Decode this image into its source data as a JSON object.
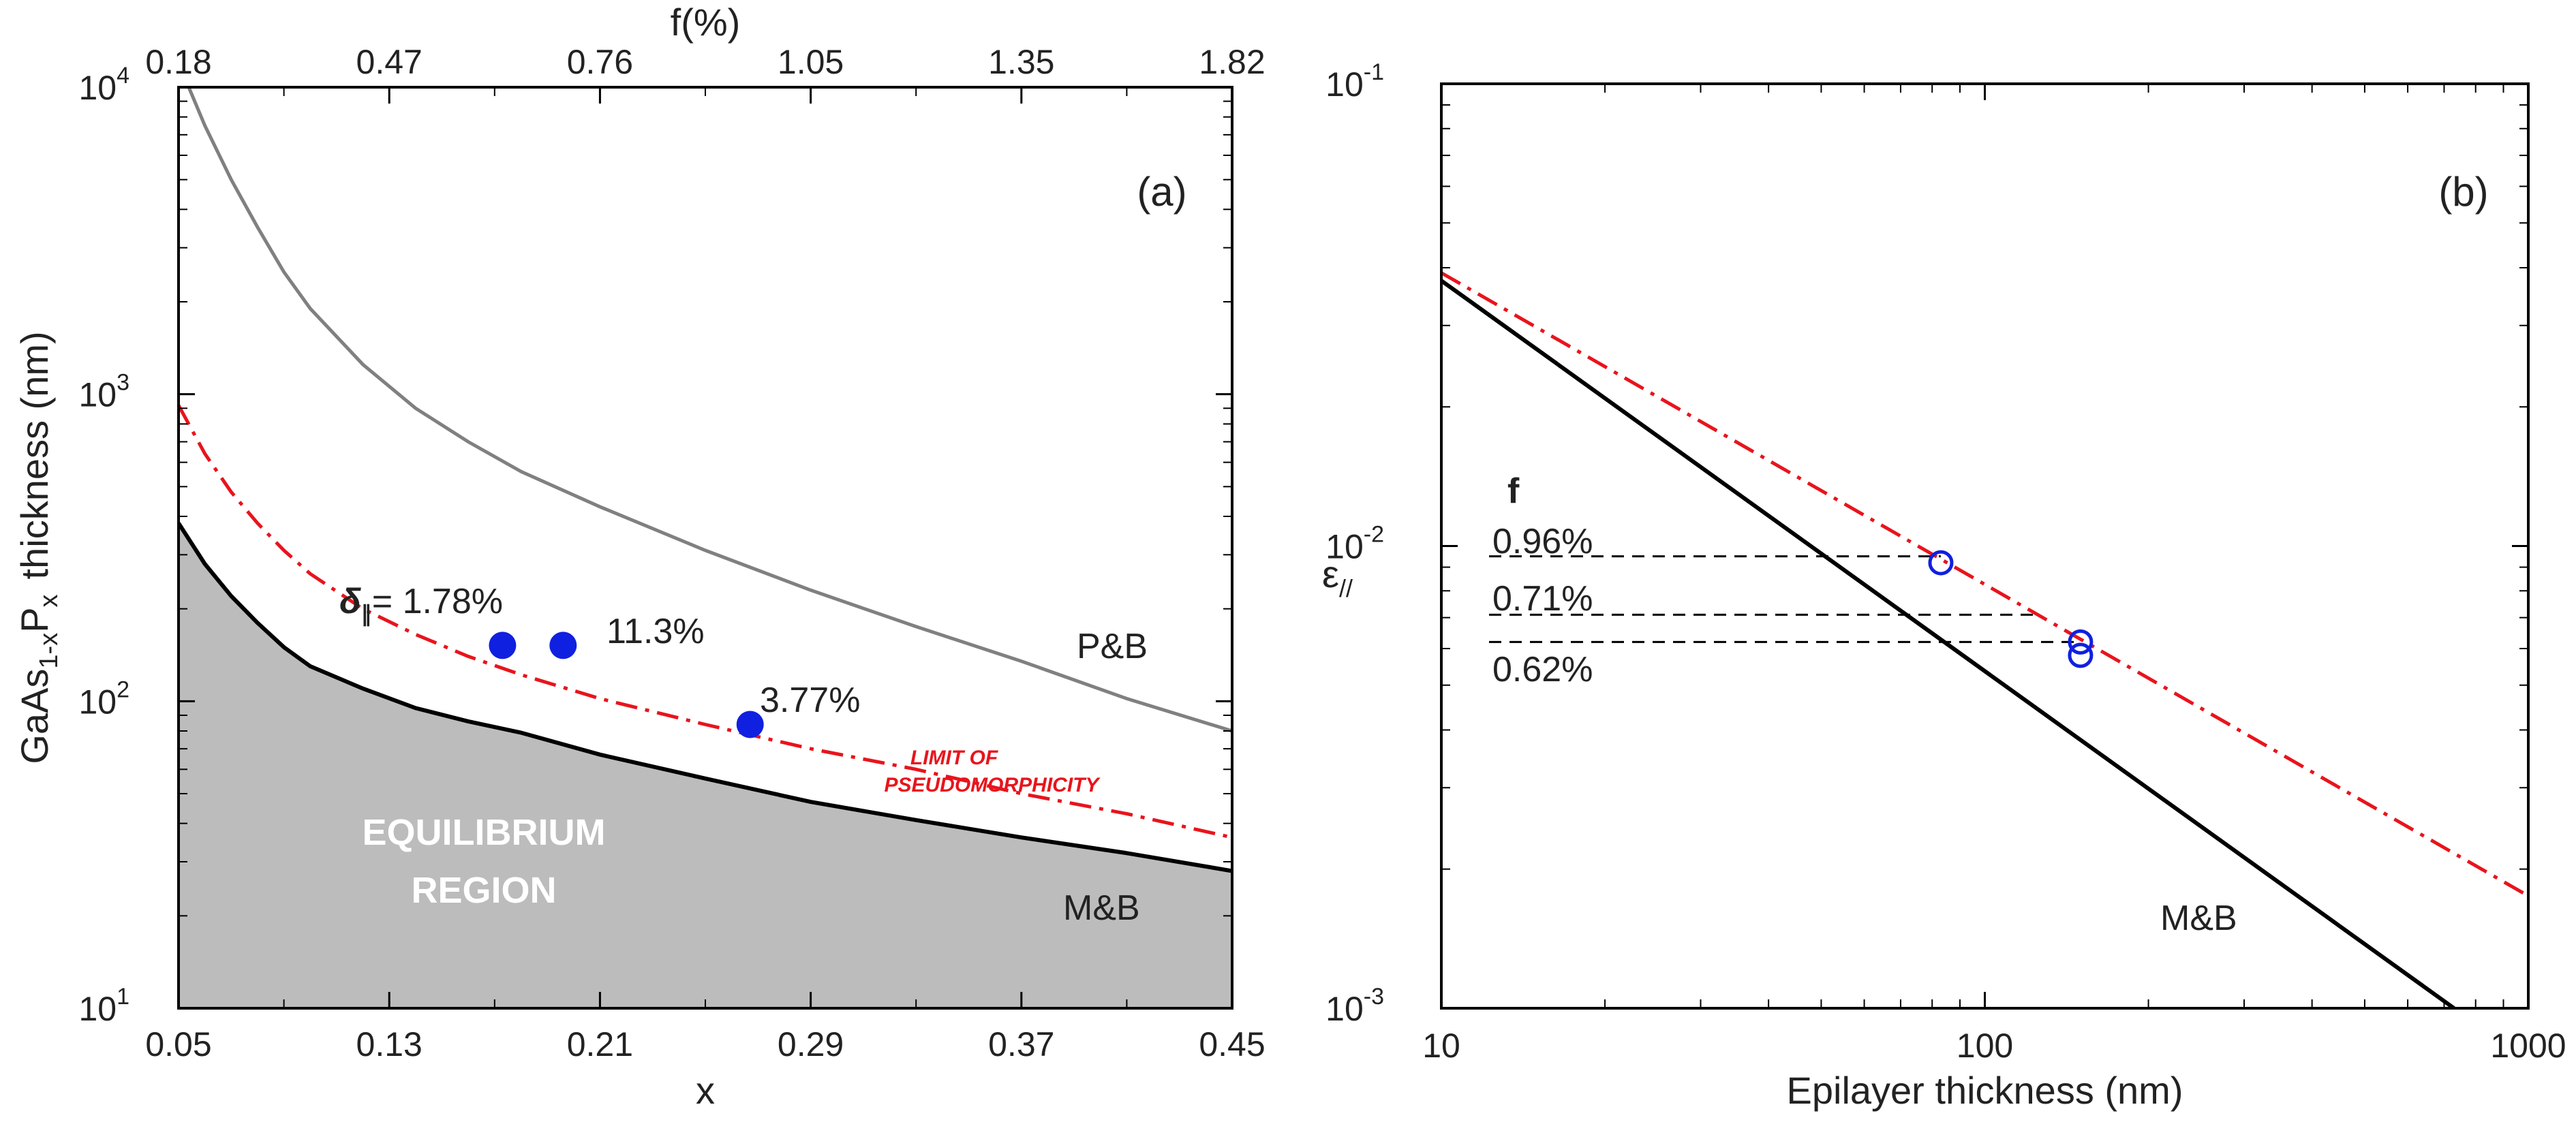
{
  "colors": {
    "axis": "#000000",
    "gray_curve": "#808080",
    "red_dashdot": "#e8141c",
    "fill_region": "#bcbcbc",
    "blue_points": "#1020e0",
    "dashed_ref": "#000000"
  },
  "chart_data": [
    {
      "id": "a",
      "type": "line",
      "panel_label": "(a)",
      "xlabel": "x",
      "ylabel": {
        "base": "GaAs",
        "sub1": "1-x",
        "mid": "P",
        "sub2": "x",
        "rest": "thickness (nm)"
      },
      "top_axis_label": "f(%)",
      "yscale": "log",
      "xlim": [
        0.05,
        0.45
      ],
      "ylim": [
        10,
        10000
      ],
      "x_ticks": [
        "0.05",
        "0.13",
        "0.21",
        "0.29",
        "0.37",
        "0.45"
      ],
      "x_tick_values": [
        0.05,
        0.13,
        0.21,
        0.29,
        0.37,
        0.45
      ],
      "top_ticks": [
        "0.18",
        "0.47",
        "0.76",
        "1.05",
        "1.35",
        "1.82"
      ],
      "top_tick_x": [
        0.05,
        0.13,
        0.21,
        0.29,
        0.37,
        0.45
      ],
      "y_ticks": [
        {
          "base": "10",
          "exp": "1"
        },
        {
          "base": "10",
          "exp": "2"
        },
        {
          "base": "10",
          "exp": "3"
        },
        {
          "base": "10",
          "exp": "4"
        }
      ],
      "y_tick_values": [
        10,
        100,
        1000,
        10000
      ],
      "series": [
        {
          "name": "P&B",
          "style": "gray-solid",
          "x": [
            0.05,
            0.06,
            0.07,
            0.08,
            0.09,
            0.1,
            0.12,
            0.14,
            0.16,
            0.18,
            0.21,
            0.25,
            0.29,
            0.33,
            0.37,
            0.41,
            0.45
          ],
          "y": [
            12000,
            7500,
            5000,
            3500,
            2500,
            1900,
            1250,
            900,
            700,
            560,
            430,
            310,
            230,
            175,
            135,
            102,
            80
          ]
        },
        {
          "name": "Limit of pseudomorphicity",
          "style": "red-dashdot",
          "x": [
            0.05,
            0.06,
            0.07,
            0.08,
            0.09,
            0.1,
            0.12,
            0.14,
            0.16,
            0.18,
            0.21,
            0.25,
            0.29,
            0.33,
            0.37,
            0.41,
            0.45
          ],
          "y": [
            920,
            640,
            480,
            380,
            310,
            260,
            200,
            165,
            140,
            122,
            102,
            84,
            70,
            60,
            50,
            43,
            36
          ]
        },
        {
          "name": "M&B",
          "style": "black-solid-filled",
          "x": [
            0.05,
            0.06,
            0.07,
            0.08,
            0.09,
            0.1,
            0.12,
            0.14,
            0.16,
            0.18,
            0.21,
            0.25,
            0.29,
            0.33,
            0.37,
            0.41,
            0.45
          ],
          "y": [
            380,
            280,
            220,
            180,
            150,
            130,
            110,
            95,
            86,
            79,
            67,
            56,
            47,
            41,
            36,
            32,
            28
          ]
        }
      ],
      "points": [
        {
          "x": 0.173,
          "y": 152,
          "label": "δ∥= 1.78%"
        },
        {
          "x": 0.196,
          "y": 152,
          "label": "11.3%"
        },
        {
          "x": 0.267,
          "y": 84,
          "label": "3.77%"
        }
      ],
      "point_label_prefix": "δ",
      "point_label_sub": "∥",
      "point_label_first_value": "= 1.78%",
      "annotations": {
        "pb": "P&B",
        "mb": "M&B",
        "limit_line1": "LIMIT OF",
        "limit_line2": "PSEUDOMORPHICITY",
        "region_line1": "EQUILIBRIUM",
        "region_line2": "REGION"
      }
    },
    {
      "id": "b",
      "type": "line",
      "panel_label": "(b)",
      "xlabel": "Epilayer thickness (nm)",
      "ylabel": {
        "base": "ε",
        "sub": "//"
      },
      "xscale": "log",
      "yscale": "log",
      "xlim": [
        10,
        1000
      ],
      "ylim": [
        0.001,
        0.1
      ],
      "x_ticks": [
        "10",
        "100",
        "1000"
      ],
      "x_tick_values": [
        10,
        100,
        1000
      ],
      "y_ticks": [
        {
          "base": "10",
          "exp": "-3"
        },
        {
          "base": "10",
          "exp": "-2"
        },
        {
          "base": "10",
          "exp": "-1"
        }
      ],
      "y_tick_values": [
        0.001,
        0.01,
        0.1
      ],
      "series": [
        {
          "name": "M&B",
          "style": "black-solid",
          "x": [
            10,
            730
          ],
          "y": [
            0.0375,
            0.001
          ]
        },
        {
          "name": "Limit of pseudomorphicity",
          "style": "red-dashdot",
          "x": [
            10,
            1000
          ],
          "y": [
            0.039,
            0.00175
          ]
        }
      ],
      "points": [
        {
          "x": 83,
          "y": 0.0092
        },
        {
          "x": 150,
          "y": 0.0062
        },
        {
          "x": 150,
          "y": 0.0058
        }
      ],
      "f_header": "f",
      "reference_lines": [
        {
          "label": "0.96%",
          "y": 0.0095,
          "x_end": 83
        },
        {
          "label": "0.71%",
          "y": 0.0071,
          "x_end": 125
        },
        {
          "label": "0.62%",
          "y": 0.0062,
          "x_end": 150
        }
      ],
      "annotations": {
        "mb": "M&B"
      }
    }
  ]
}
